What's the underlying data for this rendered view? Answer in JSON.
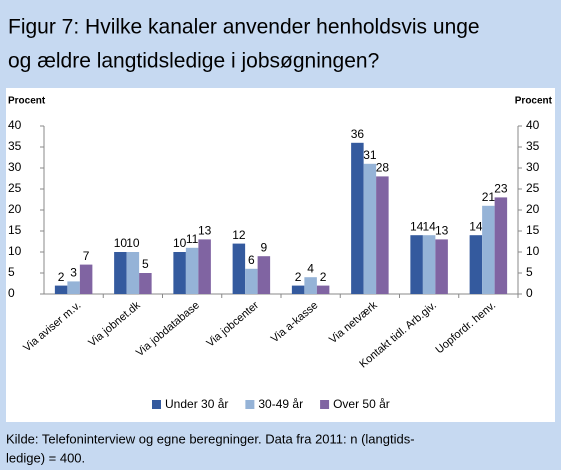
{
  "chart_data": {
    "type": "bar",
    "title": [
      "Figur 7: Hvilke kanaler anvender henholdsvis unge",
      "og ældre langtidsledige i jobsøgningen?"
    ],
    "ylabel": "Procent",
    "y2label": "Procent",
    "categories": [
      "Via aviser m.v.",
      "Via jobnet.dk",
      "Via jobdatabase",
      "Via jobcenter",
      "Via a-kasse",
      "Via netværk",
      "Kontakt tidl. Arb.giv.",
      "Uopfordr. henv."
    ],
    "series": [
      {
        "name": "Under 30 år",
        "color": "#345a9e",
        "values": [
          2,
          10,
          10,
          12,
          2,
          36,
          14,
          14
        ]
      },
      {
        "name": "30-49 år",
        "color": "#95b3d7",
        "values": [
          3,
          10,
          11,
          6,
          4,
          31,
          14,
          21
        ]
      },
      {
        "name": "Over 50 år",
        "color": "#8064a2",
        "values": [
          7,
          5,
          13,
          9,
          2,
          28,
          13,
          23
        ]
      }
    ],
    "ylim": [
      0,
      40
    ],
    "yticks": [
      0,
      5,
      10,
      15,
      20,
      25,
      30,
      35,
      40
    ],
    "y2lim": [
      0,
      40
    ],
    "y2ticks": [
      0,
      5,
      10,
      15,
      20,
      25,
      30,
      35,
      40
    ],
    "legend": "bottom",
    "source": [
      "Kilde: Telefoninterview og egne beregninger. Data fra 2011: n (langtids-",
      "ledige) = 400."
    ]
  }
}
